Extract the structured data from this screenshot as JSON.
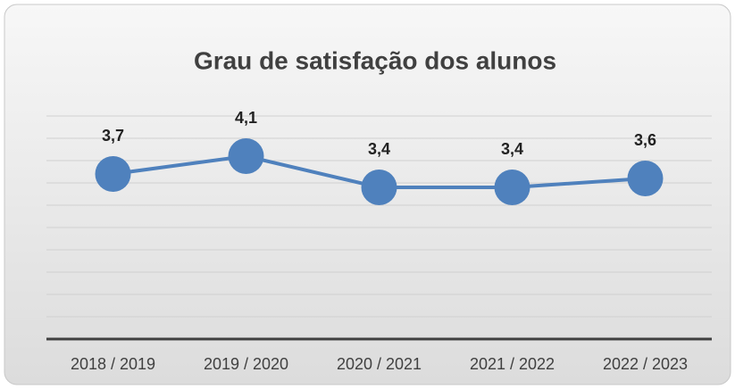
{
  "chart_data": {
    "type": "line",
    "title": "Grau de satisfação dos alunos",
    "categories": [
      "2018 / 2019",
      "2019 / 2020",
      "2020 / 2021",
      "2021 / 2022",
      "2022 / 2023"
    ],
    "series": [
      {
        "name": "Grau de satisfação",
        "color": "#4f81bd",
        "values": [
          3.7,
          4.1,
          3.4,
          3.4,
          3.6
        ],
        "value_labels": [
          "3,7",
          "4,1",
          "3,4",
          "3,4",
          "3,6"
        ]
      }
    ],
    "ylim": [
      0,
      5
    ],
    "yticks": [
      0,
      0.5,
      1,
      1.5,
      2,
      2.5,
      3,
      3.5,
      4,
      4.5,
      5
    ],
    "grid": true
  }
}
